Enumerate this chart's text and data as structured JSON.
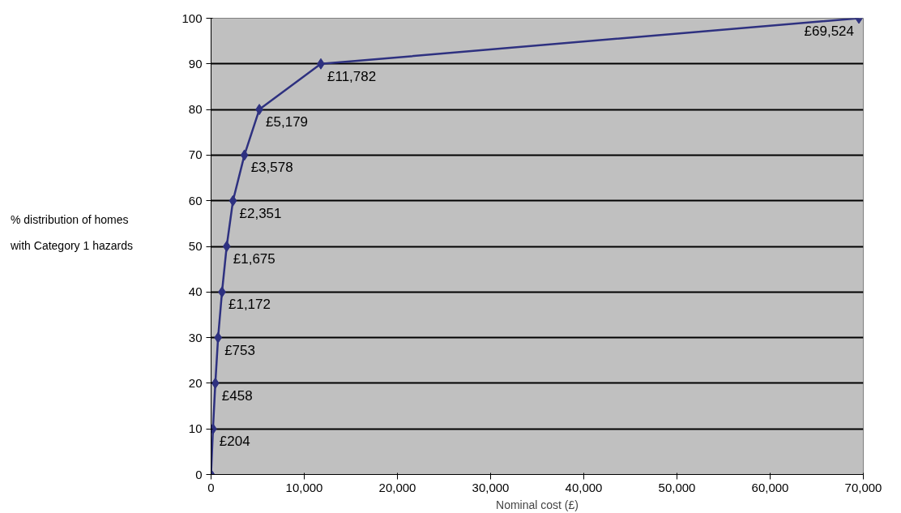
{
  "chart_data": {
    "type": "line",
    "xlabel": "Nominal cost (£)",
    "ylabel": "% distribution of homes\nwith Category 1 hazards",
    "x": [
      0,
      204,
      458,
      753,
      1172,
      1675,
      2351,
      3578,
      5179,
      11782,
      69524
    ],
    "series": [
      {
        "color": "#2e3180",
        "values": [
          0,
          10,
          20,
          30,
          40,
          50,
          60,
          70,
          80,
          90,
          100
        ]
      }
    ],
    "marker": "diamond",
    "line_style": "solid",
    "grid": "y",
    "xlim": [
      0,
      70000
    ],
    "ylim": [
      0,
      100
    ],
    "xticks": [
      0,
      {
        "value": 10000,
        "label": "10,000"
      },
      {
        "value": 20000,
        "label": "20,000"
      },
      {
        "value": 30000,
        "label": "30,000"
      },
      {
        "value": 40000,
        "label": "40,000"
      },
      {
        "value": 50000,
        "label": "50,000"
      },
      {
        "value": 60000,
        "label": "60,000"
      },
      {
        "value": 70000,
        "label": "70,000"
      }
    ],
    "yticks": [
      0,
      10,
      20,
      30,
      40,
      50,
      60,
      70,
      80,
      90,
      100
    ],
    "annotations": [
      {
        "text": "£204",
        "x": 204,
        "y": 10
      },
      {
        "text": "£458",
        "x": 458,
        "y": 20
      },
      {
        "text": "£753",
        "x": 753,
        "y": 30
      },
      {
        "text": "£1,172",
        "x": 1172,
        "y": 40
      },
      {
        "text": "£1,675",
        "x": 1675,
        "y": 50
      },
      {
        "text": "£2,351",
        "x": 2351,
        "y": 60
      },
      {
        "text": "£3,578",
        "x": 3578,
        "y": 70
      },
      {
        "text": "£5,179",
        "x": 5179,
        "y": 80
      },
      {
        "text": "£11,782",
        "x": 11782,
        "y": 90
      },
      {
        "text": "£69,524",
        "x": 69524,
        "y": 100
      }
    ]
  }
}
